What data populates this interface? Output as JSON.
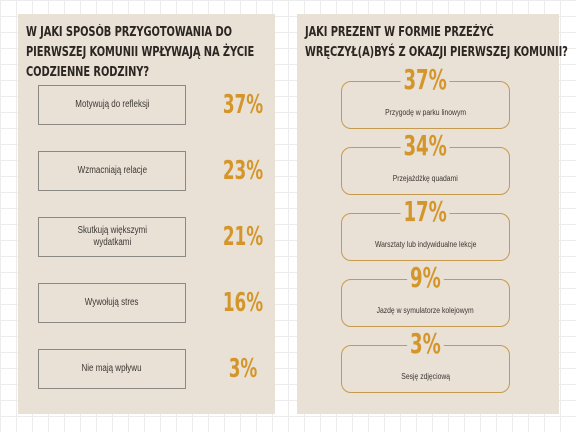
{
  "panels": {
    "left": {
      "title_lines": [
        "W JAKI SPOSÓB PRZYGOTOWANIA DO",
        "PIERWSZEJ KOMUNII WPŁYWAJĄ NA ŻYCIE",
        "CODZIENNE RODZINY?"
      ]
    },
    "right": {
      "title_lines": [
        "JAKI PREZENT W FORMIE PRZEŻYĆ",
        "WRĘCZYŁ(A)BYŚ Z OKAZJI PIERWSZEJ KOMUNII?"
      ]
    }
  },
  "chart_data": [
    {
      "type": "table",
      "title": "W JAKI SPOSÓB PRZYGOTOWANIA DO PIERWSZEJ KOMUNII WPŁYWAJĄ NA ŻYCIE CODZIENNE RODZINY?",
      "categories": [
        "Motywują do refleksji",
        "Wzmacniają relacje",
        "Skutkują większymi\nwydatkami",
        "Wywołują stres",
        "Nie mają wpływu"
      ],
      "values": [
        37,
        23,
        21,
        16,
        3
      ],
      "labels": [
        "37%",
        "23%",
        "21%",
        "16%",
        "3%"
      ],
      "unit": "%"
    },
    {
      "type": "table",
      "title": "JAKI PREZENT W FORMIE PRZEŻYĆ WRĘCZYŁ(A)BYŚ Z OKAZJI PIERWSZEJ KOMUNII?",
      "categories": [
        "Przygodę w parku linowym",
        "Przejażdżkę quadami",
        "Warsztaty lub indywidualne lekcje",
        "Jazdę w symulatorze kolejowym",
        "Sesję zdjęciową"
      ],
      "values": [
        37,
        34,
        17,
        9,
        3
      ],
      "labels": [
        "37%",
        "34%",
        "17%",
        "9%",
        "3%"
      ],
      "unit": "%"
    }
  ],
  "colors": {
    "panel": "#e9e0d6",
    "accent": "#d4962a",
    "border": "#8c8883",
    "outline": "#c69a4e",
    "text": "#2b2622"
  }
}
